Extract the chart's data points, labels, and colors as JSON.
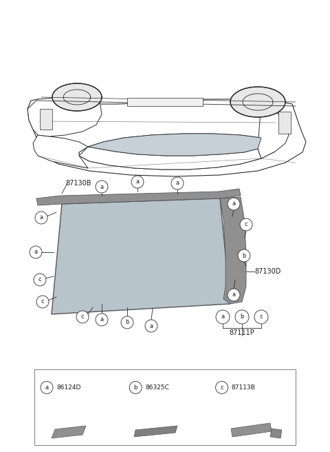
{
  "bg_color": "#ffffff",
  "line_color": "#2a2a2a",
  "text_color": "#1a1a1a",
  "glass_color": "#b8c4cc",
  "glass_edge_color": "#555555",
  "mould_color": "#888888",
  "mould_edge": "#444444",
  "legend_border": "#999999",
  "part_numbers": {
    "87111P": [
      0.735,
      0.638
    ],
    "87130D": [
      0.835,
      0.515
    ],
    "87130B": [
      0.19,
      0.385
    ]
  },
  "legend_parts": [
    {
      "label": "a",
      "code": "86124D",
      "bx": 0.115,
      "by": 0.06
    },
    {
      "label": "b",
      "code": "86325C",
      "bx": 0.375,
      "by": 0.06
    },
    {
      "label": "c",
      "code": "87113B",
      "bx": 0.628,
      "by": 0.06
    }
  ]
}
